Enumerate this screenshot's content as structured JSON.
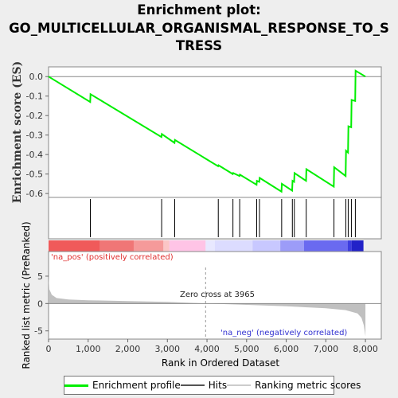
{
  "title_lines": [
    "Enrichment plot:",
    "GO_MULTICELLULAR_ORGANISMAL_RESPONSE_TO_S",
    "TRESS"
  ],
  "colors": {
    "enrichment_line": "#00ee00",
    "hits": "#000000",
    "ranking": "#c0c0c0",
    "pos_text": "#e03030",
    "neg_text": "#3030d0"
  },
  "legend": [
    {
      "label": "Enrichment profile",
      "icon": "green-line"
    },
    {
      "label": "Hits",
      "icon": "black-line"
    },
    {
      "label": "Ranking metric scores",
      "icon": "gray-line"
    }
  ],
  "annotations": {
    "pos": "'na_pos' (positively correlated)",
    "neg": "'na_neg' (negatively correlated)",
    "zero_cross": "Zero cross at 3965"
  },
  "chart_data": [
    {
      "type": "line",
      "title": "Enrichment plot: GO_MULTICELLULAR_ORGANISMAL_RESPONSE_TO_STRESS",
      "ylabel": "Enrichment score (ES)",
      "xlim": [
        0,
        8400
      ],
      "ylim": [
        -0.62,
        0.05
      ],
      "yticks": [
        0.0,
        -0.1,
        -0.2,
        -0.3,
        -0.4,
        -0.5,
        -0.6
      ],
      "ytick_labels": [
        "0.0",
        "-0.1",
        "-0.2",
        "-0.3",
        "-0.4",
        "-0.5",
        "-0.6"
      ],
      "series": [
        {
          "name": "Enrichment profile",
          "x": [
            0,
            1050,
            1060,
            2850,
            2860,
            3180,
            3190,
            4280,
            4290,
            4650,
            4660,
            4820,
            4830,
            5250,
            5260,
            5320,
            5330,
            5880,
            5890,
            6150,
            6160,
            6200,
            6210,
            6500,
            6510,
            7200,
            7210,
            7500,
            7510,
            7560,
            7570,
            7640,
            7650,
            7740,
            7750,
            8000
          ],
          "y": [
            0.0,
            -0.13,
            -0.09,
            -0.31,
            -0.295,
            -0.34,
            -0.325,
            -0.46,
            -0.455,
            -0.5,
            -0.495,
            -0.51,
            -0.503,
            -0.555,
            -0.535,
            -0.54,
            -0.52,
            -0.59,
            -0.55,
            -0.585,
            -0.535,
            -0.54,
            -0.495,
            -0.535,
            -0.475,
            -0.565,
            -0.465,
            -0.51,
            -0.38,
            -0.39,
            -0.255,
            -0.26,
            -0.12,
            -0.125,
            0.03,
            0.0
          ]
        }
      ]
    },
    {
      "type": "hits",
      "series_name": "Hits",
      "hit_ranks": [
        1055,
        2855,
        3185,
        4285,
        4655,
        4825,
        5255,
        5325,
        5885,
        6155,
        6205,
        6505,
        7205,
        7505,
        7565,
        7645,
        7745
      ]
    },
    {
      "type": "area",
      "series_name": "Ranking metric scores",
      "xlabel": "Rank in Ordered Dataset",
      "ylabel": "Ranked list metric (PreRanked)",
      "xlim": [
        0,
        8400
      ],
      "ylim": [
        -6.5,
        9.5
      ],
      "xticks": [
        0,
        1000,
        2000,
        3000,
        4000,
        5000,
        6000,
        7000,
        8000
      ],
      "xtick_labels": [
        "0",
        "1,000",
        "2,000",
        "3,000",
        "4,000",
        "5,000",
        "6,000",
        "7,000",
        "8,000"
      ],
      "yticks": [
        5,
        0,
        -5
      ],
      "ytick_labels": [
        "5",
        "0",
        "-5"
      ],
      "zero_cross": 3965,
      "x": [
        0,
        20,
        80,
        200,
        500,
        1000,
        2000,
        3000,
        3965,
        5000,
        6000,
        7000,
        7500,
        7800,
        7900,
        7960,
        8000
      ],
      "y": [
        5.0,
        2.6,
        1.6,
        1.0,
        0.75,
        0.6,
        0.45,
        0.3,
        0.0,
        -0.25,
        -0.5,
        -0.85,
        -1.2,
        -1.8,
        -2.6,
        -4.0,
        -6.0
      ]
    }
  ]
}
